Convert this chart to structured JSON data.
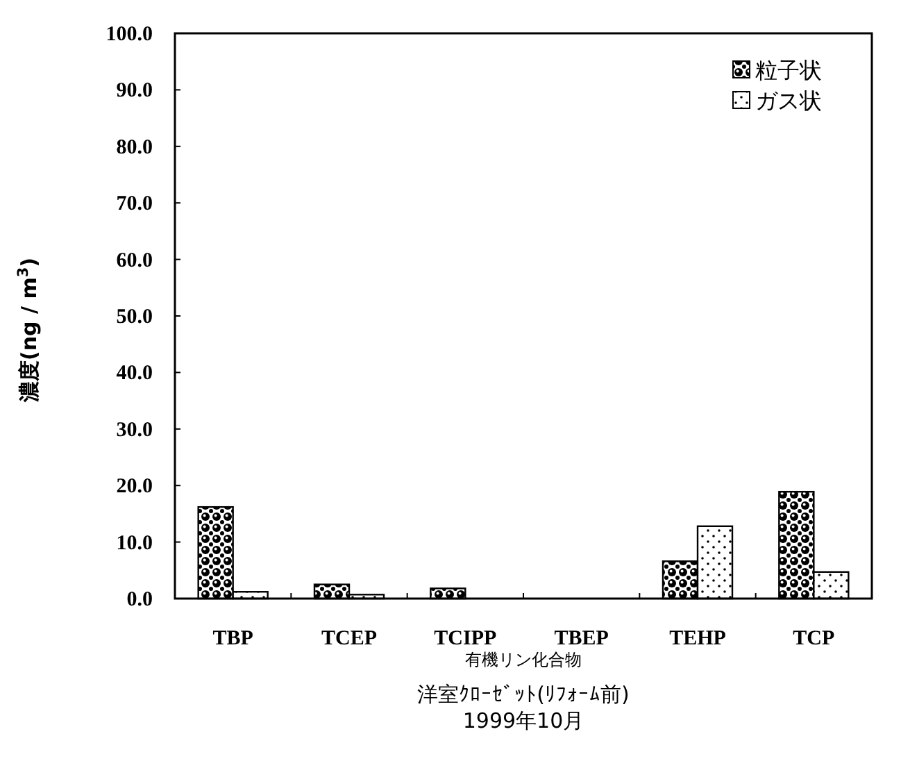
{
  "chart_data": {
    "type": "bar",
    "xlabel": "有機リン化合物",
    "ylabel": "濃度(ng / m$^{3}$)",
    "annotations": [
      "洋室ｸﾛｰｾﾞｯﾄ(ﾘﾌｫｰﾑ前)",
      "1999年10月"
    ],
    "categories": [
      "TBP",
      "TCEP",
      "TCIPP",
      "TBEP",
      "TEHP",
      "TCP"
    ],
    "series": [
      {
        "name": "粒子状",
        "color": "#000000",
        "values": [
          16.2,
          2.5,
          1.8,
          0,
          6.6,
          18.9
        ]
      },
      {
        "name": "ガス状",
        "color": "#000000",
        "values": [
          1.2,
          0.7,
          0,
          0,
          12.8,
          4.7
        ]
      }
    ],
    "ylim": [
      0,
      100
    ],
    "yticks": [
      {
        "value": 0,
        "label": "0.0"
      },
      {
        "value": 10,
        "label": "10.0"
      },
      {
        "value": 20,
        "label": "20.0"
      },
      {
        "value": 30,
        "label": "30.0"
      },
      {
        "value": 40,
        "label": "40.0"
      },
      {
        "value": 50,
        "label": "50.0"
      },
      {
        "value": 60,
        "label": "60.0"
      },
      {
        "value": 70,
        "label": "70.0"
      },
      {
        "value": 80,
        "label": "80.0"
      },
      {
        "value": 90,
        "label": "90.0"
      },
      {
        "value": 100,
        "label": "100.0"
      }
    ],
    "legend": "top right"
  }
}
